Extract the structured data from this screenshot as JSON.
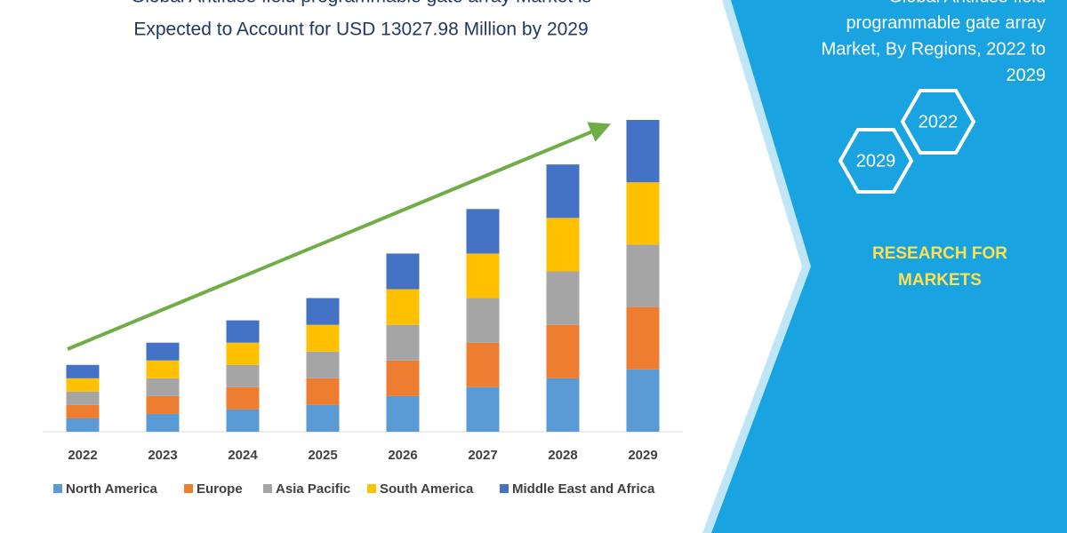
{
  "chart_data": {
    "type": "stacked-bar",
    "title": [
      "Global Antifuse field programmable gate array Market is",
      "Expected to Account for USD 13027.98 Million by 2029"
    ],
    "categories": [
      "2022",
      "2023",
      "2024",
      "2025",
      "2026",
      "2027",
      "2028",
      "2029"
    ],
    "series": [
      {
        "name": "North America",
        "color": "#5b9bd5",
        "values": [
          15,
          20,
          25,
          30,
          40,
          50,
          60,
          70
        ]
      },
      {
        "name": "Europe",
        "color": "#ed7d31",
        "values": [
          15,
          20,
          25,
          30,
          40,
          50,
          60,
          70
        ]
      },
      {
        "name": "Asia Pacific",
        "color": "#a5a5a5",
        "values": [
          15,
          20,
          25,
          30,
          40,
          50,
          60,
          70
        ]
      },
      {
        "name": "South America",
        "color": "#ffc000",
        "values": [
          15,
          20,
          25,
          30,
          40,
          50,
          60,
          70
        ]
      },
      {
        "name": "Middle East and Africa",
        "color": "#4472c4",
        "values": [
          15,
          20,
          25,
          30,
          40,
          50,
          60,
          70
        ]
      }
    ]
  },
  "panel": {
    "title": [
      "Global Antifuse field",
      "programmable gate array",
      "Market, By Regions, 2022 to",
      "2029"
    ],
    "hexagons": [
      "2022",
      "2029"
    ],
    "brand": [
      "RESEARCH FOR",
      "MARKETS"
    ]
  }
}
